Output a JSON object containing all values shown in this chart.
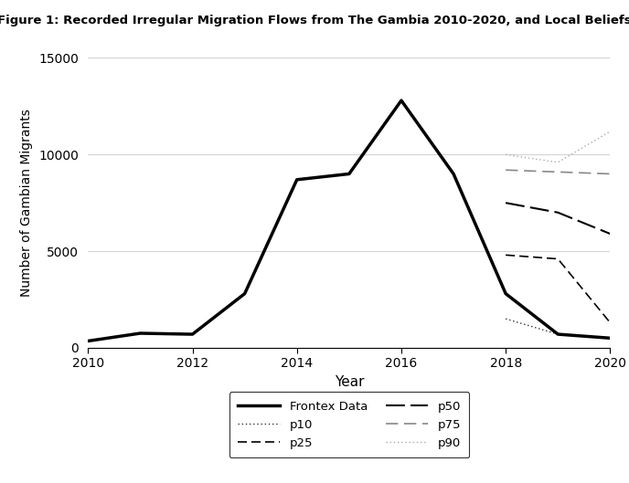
{
  "title": "Figure 1: Recorded Irregular Migration Flows from The Gambia 2010-2020, and Local Beliefs",
  "xlabel": "Year",
  "ylabel": "Number of Gambian Migrants",
  "frontex_years": [
    2010,
    2011,
    2012,
    2013,
    2014,
    2015,
    2016,
    2017,
    2018,
    2019,
    2020
  ],
  "frontex_values": [
    350,
    750,
    700,
    2800,
    8700,
    9000,
    12800,
    9000,
    2800,
    700,
    500
  ],
  "belief_years": [
    2018,
    2019,
    2020
  ],
  "p10_values": [
    1500,
    700,
    500
  ],
  "p25_values": [
    4800,
    4600,
    1300
  ],
  "p50_values": [
    7500,
    7000,
    5900
  ],
  "p75_values": [
    9200,
    9100,
    9000
  ],
  "p90_values": [
    10000,
    9600,
    11200
  ],
  "ylim": [
    0,
    15000
  ],
  "xlim": [
    2010,
    2020
  ],
  "yticks": [
    0,
    5000,
    10000,
    15000
  ],
  "xticks": [
    2010,
    2012,
    2014,
    2016,
    2018,
    2020
  ],
  "bg_color": "#ffffff",
  "plot_bg_color": "#ffffff",
  "grid_color": "#d3d3d3",
  "line_color": "#000000"
}
